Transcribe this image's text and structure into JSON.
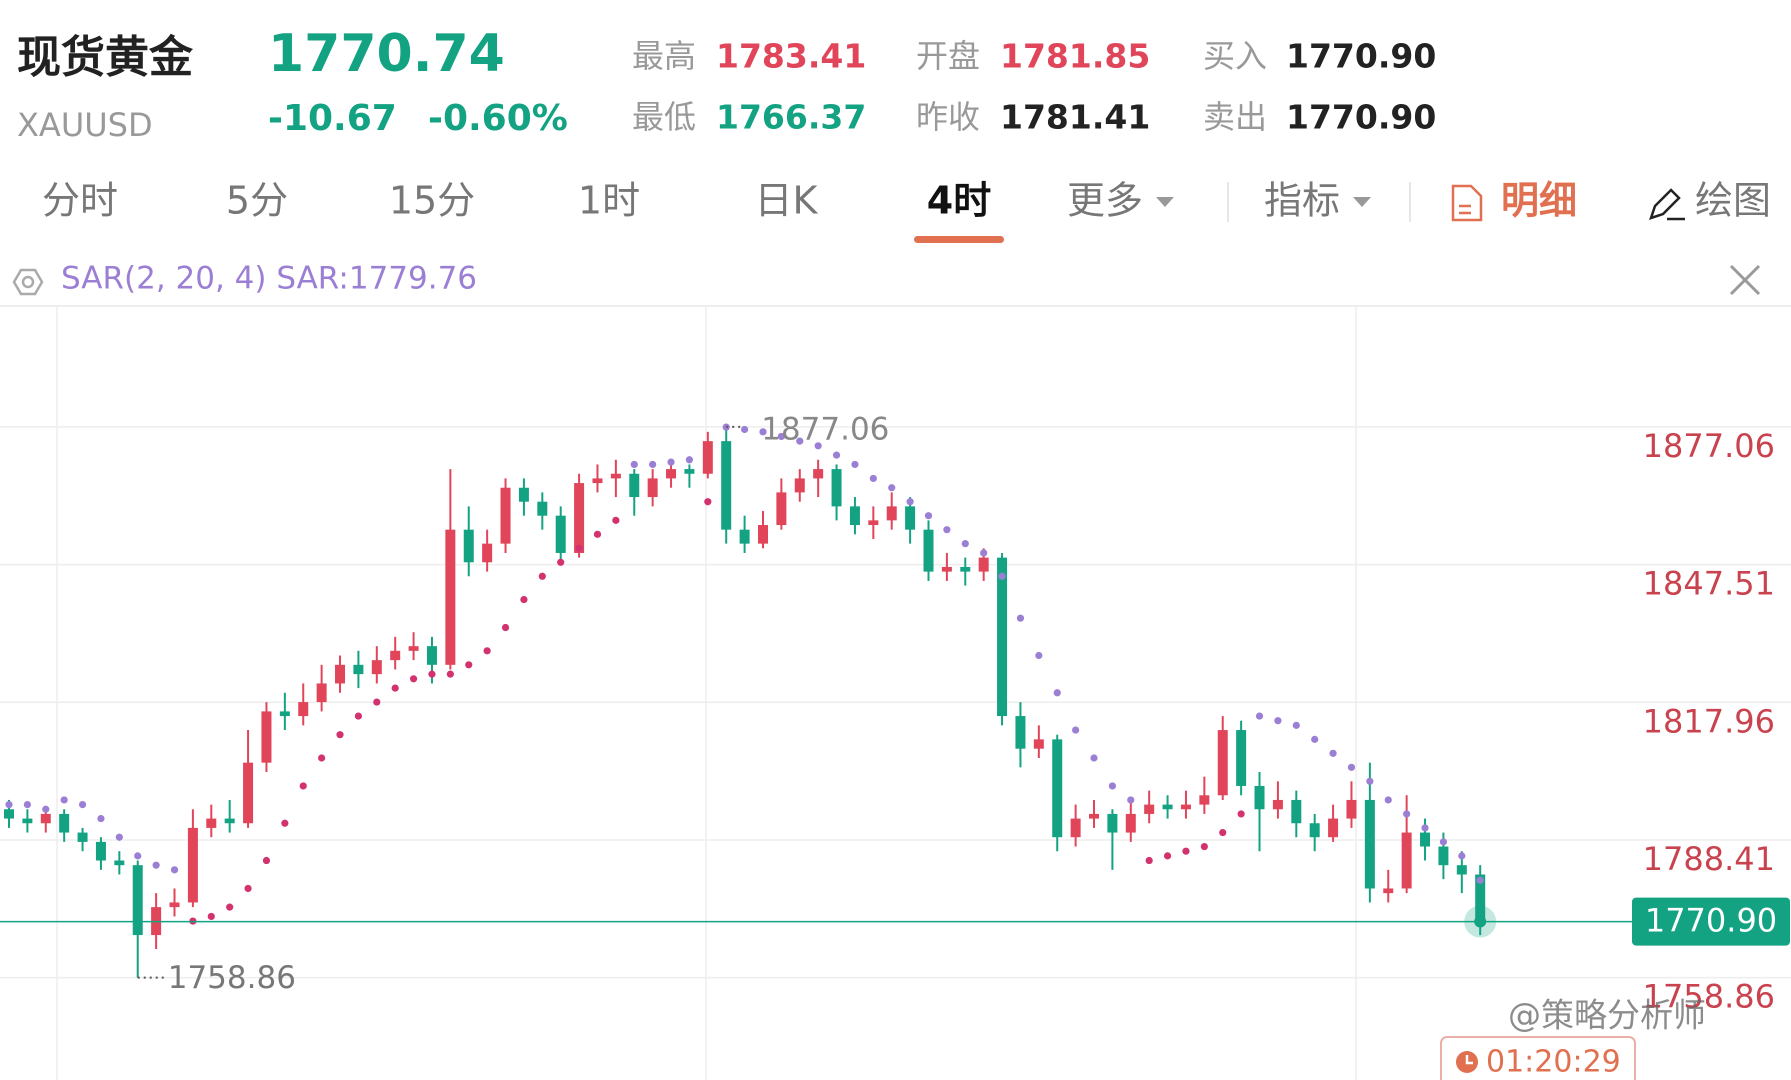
{
  "quote": {
    "name": "现货黄金",
    "symbol": "XAUUSD",
    "price": "1770.74",
    "change": "-10.67",
    "change_pct": "-0.60%",
    "stats": [
      {
        "label": "最高",
        "value": "1783.41"
      },
      {
        "label": "开盘",
        "value": "1781.85"
      },
      {
        "label": "买入",
        "value": "1770.90"
      },
      {
        "label": "最低",
        "value": "1766.37"
      },
      {
        "label": "昨收",
        "value": "1781.41"
      },
      {
        "label": "卖出",
        "value": "1770.90"
      }
    ]
  },
  "tabs": [
    {
      "label": "分时"
    },
    {
      "label": "5分"
    },
    {
      "label": "15分"
    },
    {
      "label": "1时"
    },
    {
      "label": "日K"
    },
    {
      "label": "4时",
      "active": true
    },
    {
      "label": "更多"
    },
    {
      "label": "指标"
    },
    {
      "label": "明细"
    },
    {
      "label": "绘图"
    }
  ],
  "indicator": "SAR(2, 20, 4) SAR:1779.76",
  "countdown": "01:20:29",
  "watermark": "@策略分析师",
  "chart_data": {
    "type": "candlestick",
    "open": [
      1795,
      1793,
      1792,
      1794,
      1790,
      1788,
      1784,
      1783,
      1768,
      1774,
      1775,
      1791,
      1793,
      1792,
      1805,
      1816,
      1815,
      1818,
      1822,
      1826,
      1824,
      1827,
      1829,
      1830,
      1826,
      1855,
      1848,
      1852,
      1864,
      1861,
      1858,
      1850,
      1865,
      1866,
      1867,
      1862,
      1866,
      1868,
      1867,
      1874,
      1855,
      1852,
      1856,
      1863,
      1866,
      1868,
      1860,
      1856,
      1857,
      1860,
      1855,
      1846,
      1847,
      1846,
      1849,
      1815,
      1808,
      1810,
      1789,
      1793,
      1794,
      1790,
      1794,
      1796,
      1795,
      1796,
      1798,
      1812,
      1800,
      1795,
      1797,
      1792,
      1789,
      1793,
      1797,
      1777,
      1778,
      1790,
      1787,
      1783,
      1781
    ],
    "high": [
      1797,
      1795,
      1795,
      1795,
      1791,
      1789,
      1786,
      1784,
      1777,
      1778,
      1795,
      1796,
      1797,
      1812,
      1818,
      1820,
      1822,
      1826,
      1828,
      1829,
      1830,
      1832,
      1833,
      1832,
      1868,
      1860,
      1855,
      1866,
      1866,
      1863,
      1860,
      1867,
      1869,
      1870,
      1868,
      1868,
      1870,
      1869,
      1876,
      1877.06,
      1858,
      1859,
      1866,
      1868,
      1870,
      1869,
      1862,
      1860,
      1863,
      1862,
      1857,
      1850,
      1849,
      1851,
      1850,
      1818,
      1813,
      1811,
      1796,
      1797,
      1795,
      1797,
      1799,
      1798,
      1799,
      1802,
      1815,
      1814,
      1803,
      1801,
      1799,
      1794,
      1796,
      1801,
      1805,
      1782,
      1798,
      1793,
      1790,
      1786,
      1783
    ],
    "low": [
      1791,
      1790,
      1790,
      1788,
      1786,
      1782,
      1781,
      1758.86,
      1765,
      1772,
      1774,
      1789,
      1790,
      1791,
      1803,
      1812,
      1813,
      1816,
      1820,
      1821,
      1822,
      1825,
      1827,
      1822,
      1825,
      1845,
      1846,
      1850,
      1858,
      1855,
      1848,
      1849,
      1863,
      1862,
      1858,
      1860,
      1864,
      1864,
      1866,
      1852,
      1850,
      1851,
      1855,
      1861,
      1862,
      1857,
      1854,
      1853,
      1855,
      1852,
      1844,
      1844,
      1843,
      1844,
      1813,
      1804,
      1806,
      1786,
      1787,
      1791,
      1782,
      1788,
      1792,
      1793,
      1793,
      1794,
      1797,
      1798,
      1786,
      1793,
      1789,
      1786,
      1788,
      1791,
      1775,
      1775,
      1777,
      1784,
      1780,
      1777,
      1768
    ],
    "close": [
      1793,
      1792,
      1794,
      1790,
      1788,
      1784,
      1783,
      1768,
      1774,
      1775,
      1791,
      1793,
      1792,
      1805,
      1816,
      1815,
      1818,
      1822,
      1826,
      1824,
      1827,
      1829,
      1830,
      1826,
      1855,
      1848,
      1852,
      1864,
      1861,
      1858,
      1850,
      1865,
      1866,
      1867,
      1862,
      1866,
      1868,
      1867,
      1874,
      1855,
      1852,
      1856,
      1863,
      1866,
      1868,
      1860,
      1856,
      1857,
      1860,
      1855,
      1846,
      1847,
      1846,
      1849,
      1815,
      1808,
      1810,
      1789,
      1793,
      1794,
      1790,
      1794,
      1796,
      1795,
      1796,
      1798,
      1812,
      1800,
      1795,
      1797,
      1792,
      1789,
      1793,
      1797,
      1778,
      1778,
      1790,
      1787,
      1783,
      1781,
      1770.9
    ],
    "sar": [
      1796,
      1796,
      1795,
      1797,
      1796,
      1793,
      1789,
      1785,
      1783,
      1782,
      1771,
      1772,
      1774,
      1778,
      1784,
      1792,
      1800,
      1806,
      1811,
      1815,
      1818,
      1821,
      1823,
      1824,
      1824,
      1826,
      1829,
      1834,
      1840,
      1845,
      1848,
      1851,
      1854,
      1857,
      1869,
      1869,
      1869.5,
      1870,
      1861,
      1877,
      1876.5,
      1876,
      1875,
      1874,
      1873,
      1871,
      1869,
      1866,
      1864,
      1861,
      1858,
      1855,
      1852,
      1850,
      1845,
      1836,
      1828,
      1820,
      1812,
      1806,
      1800,
      1797,
      1784,
      1785,
      1786,
      1787,
      1790,
      1794,
      1815,
      1814,
      1813,
      1810,
      1807,
      1804,
      1801,
      1797,
      1794,
      1791,
      1788,
      1785,
      1779.76
    ],
    "up_color": "#e0455a",
    "down_color": "#13a383",
    "sar_colors": {
      "above": "#9b7fd4",
      "below": "#d2336f"
    },
    "last_price": {
      "value": 1770.9,
      "label": "1770.90"
    },
    "ylim": [
      1736.9,
      1903.0
    ],
    "yticks": [
      1877.06,
      1847.51,
      1817.96,
      1788.41,
      1758.86
    ],
    "grid": true
  }
}
